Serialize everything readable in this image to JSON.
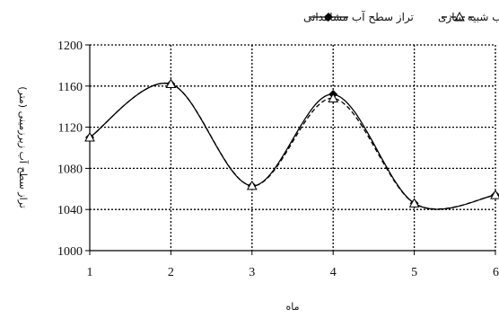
{
  "chart_data": {
    "type": "line",
    "x": [
      1,
      2,
      3,
      4,
      5,
      6
    ],
    "series": [
      {
        "name": "تراز سطح آب مشاهداتی",
        "values": [
          1110,
          1162,
          1063,
          1152,
          1046,
          1054
        ],
        "color": "#000000",
        "line_style": "solid",
        "marker": "diamond"
      },
      {
        "name": "تراز سطح آب شبیه سازی",
        "values": [
          1110,
          1162,
          1063,
          1148,
          1046,
          1054
        ],
        "color": "#000000",
        "line_style": "dashed",
        "marker": "triangle-open"
      }
    ],
    "xlabel": "ماه",
    "ylabel": "تراز سطح آب زیرزمینی (متر)",
    "xlim": [
      1,
      6
    ],
    "ylim": [
      1000,
      1200
    ],
    "y_ticks": [
      1000,
      1040,
      1080,
      1120,
      1160,
      1200
    ],
    "x_ticks": [
      1,
      2,
      3,
      4,
      5,
      6
    ],
    "grid": true,
    "legend_position": "top"
  }
}
